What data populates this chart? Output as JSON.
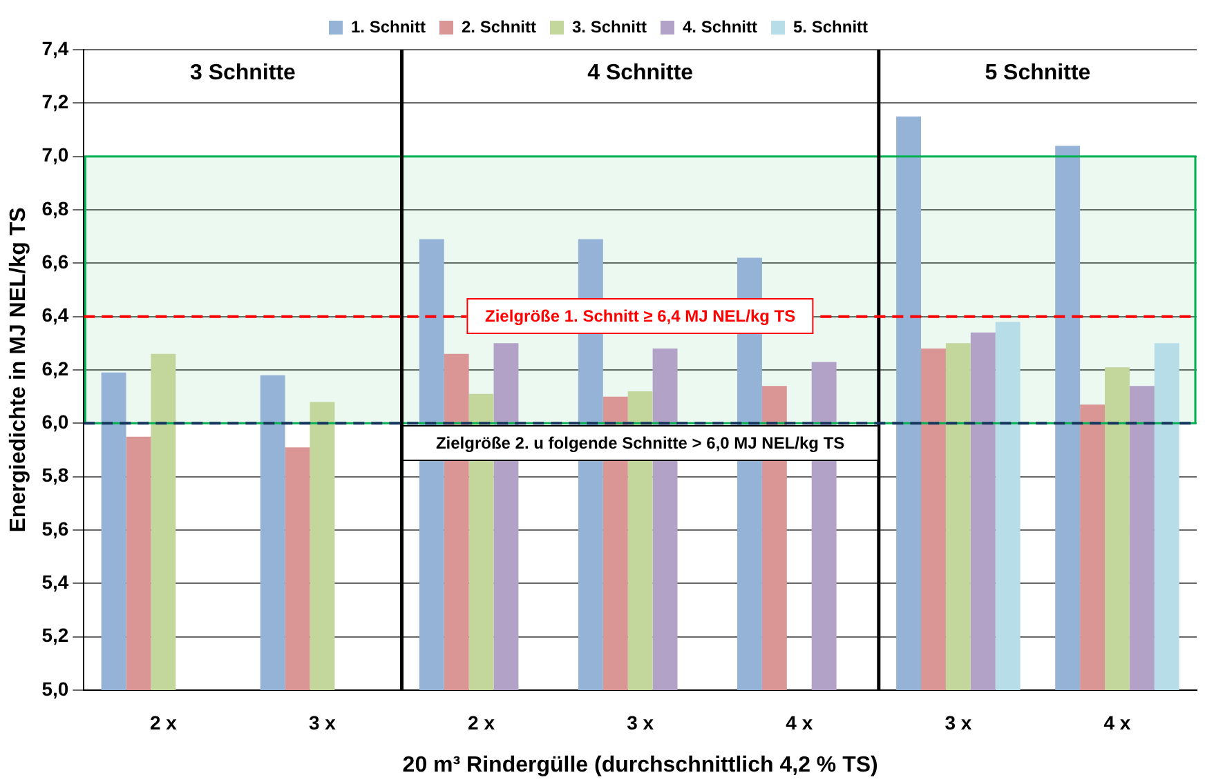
{
  "chart_data": {
    "type": "bar",
    "xlabel": "20 m³ Rindergülle (durchschnittlich 4,2 % TS)",
    "ylabel": "Energiedichte in MJ NEL/kg TS",
    "categories": [
      "2 x",
      "3 x",
      "2 x",
      "3 x",
      "4 x",
      "3 x",
      "4 x"
    ],
    "series": [
      {
        "name": "1. Schnitt",
        "color": "#95b3d7",
        "values": [
          6.19,
          6.18,
          6.69,
          6.69,
          6.62,
          7.15,
          7.04
        ]
      },
      {
        "name": "2. Schnitt",
        "color": "#d99694",
        "values": [
          5.95,
          5.91,
          6.26,
          6.1,
          6.14,
          6.28,
          6.07
        ]
      },
      {
        "name": "3. Schnitt",
        "color": "#c3d69b",
        "values": [
          6.26,
          6.08,
          6.11,
          6.12,
          null,
          6.3,
          6.21
        ]
      },
      {
        "name": "4. Schnitt",
        "color": "#b3a2c7",
        "values": [
          null,
          null,
          6.3,
          6.28,
          6.23,
          6.34,
          6.14
        ]
      },
      {
        "name": "5. Schnitt",
        "color": "#b7dee8",
        "values": [
          null,
          null,
          null,
          null,
          null,
          6.38,
          6.3
        ]
      }
    ],
    "ylim": [
      5.0,
      7.4
    ],
    "yticks": [
      {
        "value": 5.0,
        "label": "5,0"
      },
      {
        "value": 5.2,
        "label": "5,2"
      },
      {
        "value": 5.4,
        "label": "5,4"
      },
      {
        "value": 5.6,
        "label": "5,6"
      },
      {
        "value": 5.8,
        "label": "5,8"
      },
      {
        "value": 6.0,
        "label": "6,0"
      },
      {
        "value": 6.2,
        "label": "6,2"
      },
      {
        "value": 6.4,
        "label": "6,4"
      },
      {
        "value": 6.6,
        "label": "6,6"
      },
      {
        "value": 6.8,
        "label": "6,8"
      },
      {
        "value": 7.0,
        "label": "7,0"
      },
      {
        "value": 7.2,
        "label": "7,2"
      },
      {
        "value": 7.4,
        "label": "7,4"
      }
    ],
    "grid": "y",
    "legend": "top",
    "bands": [
      {
        "axis": "y",
        "from": 6.0,
        "to": 7.0,
        "color": "#00b050"
      }
    ],
    "ref_lines": [
      {
        "axis": "y",
        "value": 6.4,
        "label": "Zielgröße 1. Schnitt ≥ 6,4 MJ NEL/kg TS",
        "color": "#ff0000",
        "line_style": "dashed"
      },
      {
        "axis": "y",
        "value": 6.0,
        "label": "Zielgröße 2. u folgende Schnitte > 6,0 MJ NEL/kg TS",
        "color": "#17375e",
        "line_style": "dashed"
      }
    ],
    "annotations": [
      "3 Schnitte",
      "4 Schnitte",
      "5 Schnitte"
    ]
  }
}
